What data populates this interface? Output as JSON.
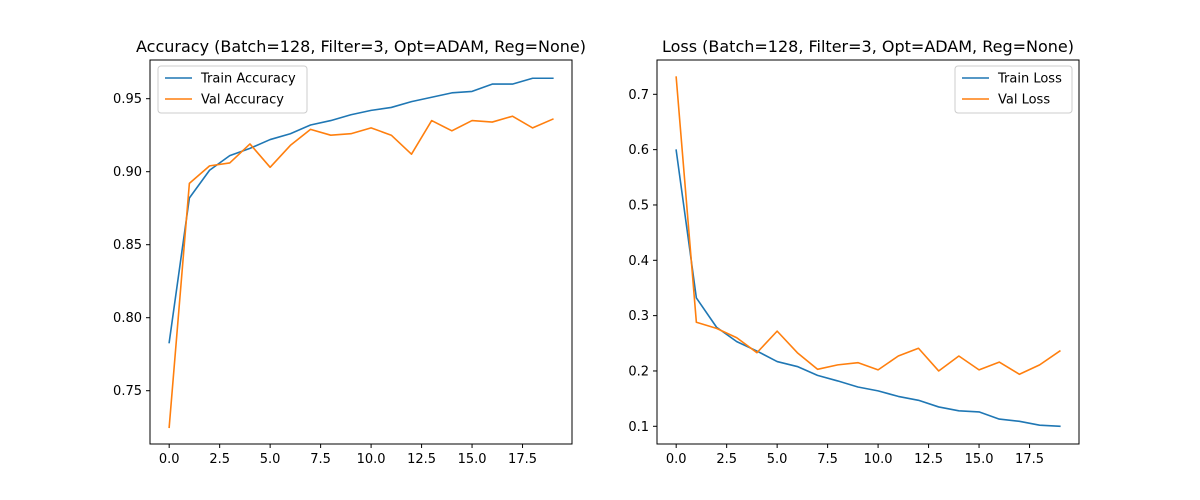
{
  "chart_data": [
    {
      "type": "line",
      "title": "Accuracy (Batch=128, Filter=3, Opt=ADAM, Reg=None)",
      "xlabel": "",
      "ylabel": "",
      "x": [
        0,
        1,
        2,
        3,
        4,
        5,
        6,
        7,
        8,
        9,
        10,
        11,
        12,
        13,
        14,
        15,
        16,
        17,
        18,
        19
      ],
      "xlim": [
        -0.95,
        19.95
      ],
      "ylim": [
        0.7135,
        0.9765
      ],
      "xticks": [
        0.0,
        2.5,
        5.0,
        7.5,
        10.0,
        12.5,
        15.0,
        17.5
      ],
      "xtick_labels": [
        "0.0",
        "2.5",
        "5.0",
        "7.5",
        "10.0",
        "12.5",
        "15.0",
        "17.5"
      ],
      "yticks": [
        0.75,
        0.8,
        0.85,
        0.9,
        0.95
      ],
      "ytick_labels": [
        "0.75",
        "0.80",
        "0.85",
        "0.90",
        "0.95"
      ],
      "grid": false,
      "legend_position": "top-left",
      "series": [
        {
          "name": "Train Accuracy",
          "color": "#1f77b4",
          "values": [
            0.783,
            0.882,
            0.901,
            0.911,
            0.916,
            0.922,
            0.926,
            0.932,
            0.935,
            0.939,
            0.942,
            0.944,
            0.948,
            0.951,
            0.954,
            0.955,
            0.96,
            0.96,
            0.964,
            0.964
          ]
        },
        {
          "name": "Val Accuracy",
          "color": "#ff7f0e",
          "values": [
            0.725,
            0.892,
            0.904,
            0.906,
            0.919,
            0.903,
            0.918,
            0.929,
            0.925,
            0.926,
            0.93,
            0.925,
            0.912,
            0.935,
            0.928,
            0.935,
            0.934,
            0.938,
            0.93,
            0.936
          ]
        }
      ]
    },
    {
      "type": "line",
      "title": "Loss (Batch=128, Filter=3, Opt=ADAM, Reg=None)",
      "xlabel": "",
      "ylabel": "",
      "x": [
        0,
        1,
        2,
        3,
        4,
        5,
        6,
        7,
        8,
        9,
        10,
        11,
        12,
        13,
        14,
        15,
        16,
        17,
        18,
        19
      ],
      "xlim": [
        -0.95,
        19.95
      ],
      "ylim": [
        0.068,
        0.762
      ],
      "xticks": [
        0.0,
        2.5,
        5.0,
        7.5,
        10.0,
        12.5,
        15.0,
        17.5
      ],
      "xtick_labels": [
        "0.0",
        "2.5",
        "5.0",
        "7.5",
        "10.0",
        "12.5",
        "15.0",
        "17.5"
      ],
      "yticks": [
        0.1,
        0.2,
        0.3,
        0.4,
        0.5,
        0.6,
        0.7
      ],
      "ytick_labels": [
        "0.1",
        "0.2",
        "0.3",
        "0.4",
        "0.5",
        "0.6",
        "0.7"
      ],
      "grid": false,
      "legend_position": "top-right",
      "series": [
        {
          "name": "Train Loss",
          "color": "#1f77b4",
          "values": [
            0.599,
            0.332,
            0.279,
            0.253,
            0.236,
            0.217,
            0.208,
            0.192,
            0.182,
            0.171,
            0.164,
            0.154,
            0.147,
            0.135,
            0.128,
            0.126,
            0.113,
            0.109,
            0.102,
            0.1
          ]
        },
        {
          "name": "Val Loss",
          "color": "#ff7f0e",
          "values": [
            0.731,
            0.288,
            0.277,
            0.26,
            0.233,
            0.272,
            0.233,
            0.203,
            0.211,
            0.215,
            0.202,
            0.227,
            0.241,
            0.2,
            0.227,
            0.202,
            0.216,
            0.194,
            0.211,
            0.236
          ]
        }
      ]
    }
  ]
}
